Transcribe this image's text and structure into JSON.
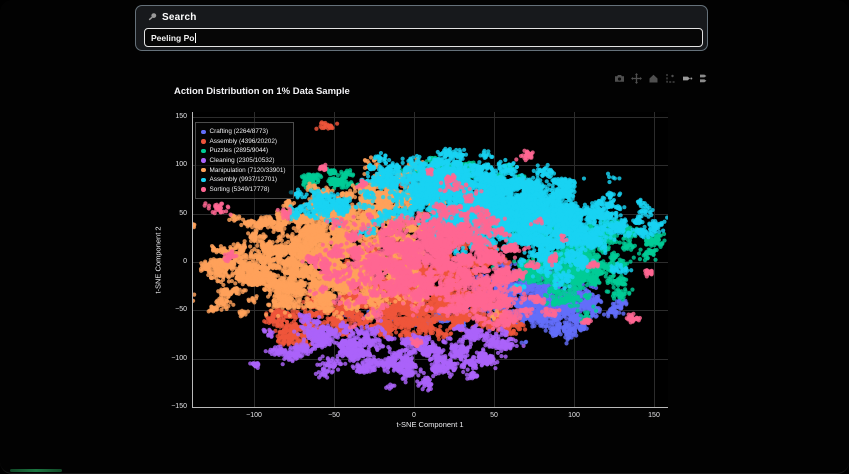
{
  "search": {
    "label": "Search",
    "input_value": "Peeling Po",
    "icon": "magnifier-icon"
  },
  "modebar": {
    "icons": [
      "download-plot-icon",
      "pan-icon",
      "reset-axes-icon",
      "toggle-spikelines-icon",
      "hover-closest-icon",
      "hover-compare-icon"
    ]
  },
  "chart_data": {
    "type": "scatter",
    "title": "Action Distribution on 1% Data Sample",
    "xlabel": "t-SNE Component 1",
    "ylabel": "t-SNE Component 2",
    "xlim": [
      -138.75,
      158.75
    ],
    "ylim": [
      -151.1,
      155.3
    ],
    "xticks": [
      -100,
      -50,
      0,
      50,
      100,
      150
    ],
    "yticks": [
      -150,
      -100,
      -50,
      0,
      50,
      100,
      150
    ],
    "grid": true,
    "legend_position": "top-left",
    "paper_bg": "#000000",
    "grid_color": "#2c2c2c",
    "axisline_color": "#b9b9b9",
    "series": [
      {
        "name": "Crafting",
        "legend_label": "Crafting (2264/8773)",
        "sampled": 2264,
        "total": 8773,
        "color": "#636efa",
        "clusters": [
          [
            82,
            -45,
            20,
            16,
            0.7
          ],
          [
            55,
            -22,
            14,
            12,
            0.15
          ],
          [
            20,
            -60,
            25,
            12,
            0.1
          ],
          [
            -30,
            -40,
            30,
            20,
            0.05
          ]
        ]
      },
      {
        "name": "Assembly",
        "legend_label": "Assembly (4396/20202)",
        "sampled": 4396,
        "total": 20202,
        "color": "#ef553b",
        "clusters": [
          [
            -18,
            -45,
            22,
            16,
            0.4
          ],
          [
            8,
            -18,
            20,
            16,
            0.25
          ],
          [
            -70,
            -65,
            14,
            10,
            0.1
          ],
          [
            -5,
            15,
            40,
            30,
            0.15
          ],
          [
            30,
            -55,
            15,
            10,
            0.1
          ]
        ]
      },
      {
        "name": "Puzzles",
        "legend_label": "Puzzles (2895/9044)",
        "sampled": 2895,
        "total": 9044,
        "color": "#00cc96",
        "clusters": [
          [
            100,
            -8,
            20,
            15,
            0.5
          ],
          [
            122,
            25,
            14,
            10,
            0.15
          ],
          [
            30,
            92,
            13,
            9,
            0.15
          ],
          [
            -62,
            82,
            12,
            7,
            0.08
          ],
          [
            70,
            35,
            15,
            10,
            0.12
          ]
        ]
      },
      {
        "name": "Cleaning",
        "legend_label": "Cleaning (2305/10532)",
        "sampled": 2305,
        "total": 10532,
        "color": "#ab63fa",
        "clusters": [
          [
            -10,
            -98,
            38,
            13,
            0.7
          ],
          [
            -58,
            -75,
            15,
            10,
            0.15
          ],
          [
            35,
            -85,
            18,
            10,
            0.15
          ]
        ]
      },
      {
        "name": "Manipulation",
        "legend_label": "Manipulation (7120/33901)",
        "sampled": 7120,
        "total": 33901,
        "color": "#ffa15a",
        "clusters": [
          [
            -65,
            2,
            33,
            26,
            0.55
          ],
          [
            -30,
            42,
            24,
            16,
            0.18
          ],
          [
            -12,
            72,
            20,
            12,
            0.1
          ],
          [
            -98,
            -18,
            16,
            14,
            0.09
          ],
          [
            -40,
            -35,
            20,
            14,
            0.08
          ]
        ]
      },
      {
        "name": "Assembly",
        "legend_label": "Assembly (9937/12701)",
        "sampled": 9937,
        "total": 12701,
        "color": "#19d3f3",
        "clusters": [
          [
            55,
            55,
            30,
            18,
            0.65
          ],
          [
            12,
            85,
            18,
            11,
            0.15
          ],
          [
            103,
            35,
            18,
            11,
            0.12
          ],
          [
            -55,
            60,
            10,
            7,
            0.04
          ],
          [
            85,
            0,
            15,
            12,
            0.04
          ]
        ]
      },
      {
        "name": "Sorting",
        "legend_label": "Sorting (5349/17778)",
        "sampled": 5349,
        "total": 17778,
        "color": "#ff6692",
        "clusters": [
          [
            15,
            8,
            28,
            26,
            0.55
          ],
          [
            45,
            -32,
            18,
            14,
            0.15
          ],
          [
            -10,
            -15,
            25,
            18,
            0.15
          ],
          [
            0,
            0,
            65,
            45,
            0.15
          ]
        ]
      }
    ]
  }
}
